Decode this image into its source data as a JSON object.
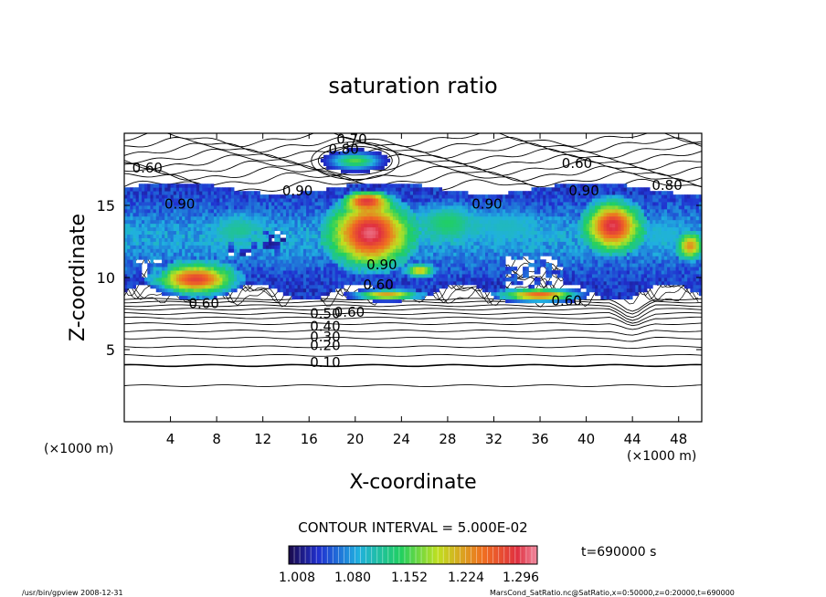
{
  "chart_data": {
    "type": "heatmap",
    "title": "saturation ratio",
    "xlabel": "X-coordinate",
    "ylabel": "Z-coordinate",
    "x_unit": "(×1000 m)",
    "z_unit": "(×1000 m)",
    "xlim": [
      0,
      50
    ],
    "zlim": [
      0,
      20
    ],
    "x_ticks": [
      4,
      8,
      12,
      16,
      20,
      24,
      28,
      32,
      36,
      40,
      44,
      48
    ],
    "z_ticks": [
      5,
      10,
      15
    ],
    "contour_interval_text": "CONTOUR INTERVAL = 5.000E-02",
    "time_text": "t=690000 s",
    "colorbar_labels": [
      "1.008",
      "1.080",
      "1.152",
      "1.224",
      "1.296"
    ],
    "colorbar_range": [
      0.99,
      1.33
    ],
    "contour_labels": [
      {
        "text": "0.70",
        "x": 19.7,
        "z": 19.6
      },
      {
        "text": "0.80",
        "x": 19.0,
        "z": 18.9
      },
      {
        "text": "0.60",
        "x": 2.0,
        "z": 17.6
      },
      {
        "text": "0.60",
        "x": 39.2,
        "z": 17.9
      },
      {
        "text": "0.90",
        "x": 15.0,
        "z": 16.0
      },
      {
        "text": "0.90",
        "x": 4.8,
        "z": 15.1
      },
      {
        "text": "0.90",
        "x": 31.4,
        "z": 15.1
      },
      {
        "text": "0.90",
        "x": 39.8,
        "z": 16.0
      },
      {
        "text": "0.80",
        "x": 47.0,
        "z": 16.4
      },
      {
        "text": "0.90",
        "x": 22.3,
        "z": 10.9
      },
      {
        "text": "0.60",
        "x": 6.9,
        "z": 8.2
      },
      {
        "text": "0.60",
        "x": 38.3,
        "z": 8.4
      },
      {
        "text": "0.60",
        "x": 22.0,
        "z": 9.5
      },
      {
        "text": "0.60",
        "x": 19.5,
        "z": 7.6
      },
      {
        "text": "0.50",
        "x": 17.4,
        "z": 7.5
      },
      {
        "text": "0.40",
        "x": 17.4,
        "z": 6.6
      },
      {
        "text": "0.30",
        "x": 17.4,
        "z": 5.9
      },
      {
        "text": "0.20",
        "x": 17.4,
        "z": 5.3
      },
      {
        "text": "0.10",
        "x": 17.4,
        "z": 4.1
      }
    ],
    "features": [
      {
        "x": 20.0,
        "z": 18.1,
        "rx": 2.6,
        "rz": 0.7,
        "v": 1.16
      },
      {
        "x": 21.3,
        "z": 13.1,
        "rx": 3.8,
        "rz": 2.6,
        "v": 1.32
      },
      {
        "x": 21.0,
        "z": 15.3,
        "rx": 2.0,
        "rz": 0.7,
        "v": 1.3
      },
      {
        "x": 42.3,
        "z": 13.6,
        "rx": 2.6,
        "rz": 1.9,
        "v": 1.31
      },
      {
        "x": 6.2,
        "z": 9.9,
        "rx": 3.8,
        "rz": 1.2,
        "v": 1.29
      },
      {
        "x": 22.7,
        "z": 8.8,
        "rx": 3.2,
        "rz": 0.4,
        "v": 1.24
      },
      {
        "x": 36.0,
        "z": 8.8,
        "rx": 3.8,
        "rz": 0.5,
        "v": 1.27
      },
      {
        "x": 25.6,
        "z": 10.5,
        "rx": 1.4,
        "rz": 0.5,
        "v": 1.22
      },
      {
        "x": 10.0,
        "z": 13.2,
        "rx": 2.6,
        "rz": 1.4,
        "v": 1.12
      },
      {
        "x": 28.0,
        "z": 13.8,
        "rx": 3.0,
        "rz": 1.4,
        "v": 1.14
      },
      {
        "x": 33.0,
        "z": 13.6,
        "rx": 3.5,
        "rz": 1.2,
        "v": 1.1
      },
      {
        "x": 49.0,
        "z": 12.2,
        "rx": 1.2,
        "rz": 1.0,
        "v": 1.24
      },
      {
        "x": 46.5,
        "z": 13.0,
        "rx": 2.2,
        "rz": 1.1,
        "v": 1.09
      },
      {
        "x": 14.0,
        "z": 11.6,
        "rx": 2.0,
        "rz": 1.0,
        "v": 1.06
      }
    ]
  },
  "footer": {
    "left": "/usr/bin/gpview   2008-12-31",
    "right": "MarsCond_SatRatio.nc@SatRatio,x=0:50000,z=0:20000,t=690000"
  }
}
